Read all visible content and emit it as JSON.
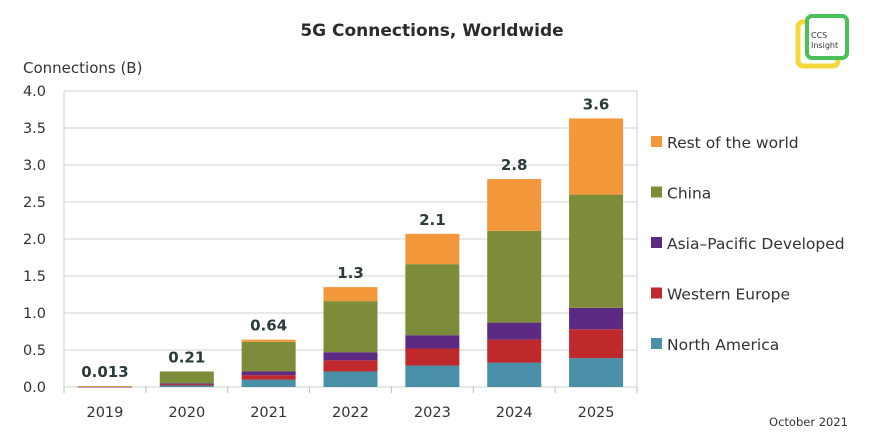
{
  "chart_data": {
    "type": "bar",
    "stacked": true,
    "title": "5G Connections, Worldwide",
    "ylabel": "Connections (B)",
    "xlabel": "",
    "ylim": [
      0,
      4.0
    ],
    "yticks": [
      "0.0",
      "0.5",
      "1.0",
      "1.5",
      "2.0",
      "2.5",
      "3.0",
      "3.5",
      "4.0"
    ],
    "ytick_values": [
      0,
      0.5,
      1.0,
      1.5,
      2.0,
      2.5,
      3.0,
      3.5,
      4.0
    ],
    "grid": true,
    "legend_position": "right",
    "categories": [
      "2019",
      "2020",
      "2021",
      "2022",
      "2023",
      "2024",
      "2025"
    ],
    "totals": [
      "0.013",
      "0.21",
      "0.64",
      "1.3",
      "2.1",
      "2.8",
      "3.6"
    ],
    "series": [
      {
        "name": "North America",
        "color": "#4a90a8",
        "values": [
          0.005,
          0.02,
          0.1,
          0.21,
          0.29,
          0.33,
          0.39
        ]
      },
      {
        "name": "Western Europe",
        "color": "#c0292b",
        "values": [
          0.001,
          0.015,
          0.06,
          0.15,
          0.23,
          0.31,
          0.39
        ]
      },
      {
        "name": "Asia–Pacific Developed",
        "color": "#5c2a82",
        "values": [
          0.001,
          0.015,
          0.05,
          0.11,
          0.18,
          0.23,
          0.29
        ]
      },
      {
        "name": "China",
        "color": "#7c8c38",
        "values": [
          0.004,
          0.16,
          0.4,
          0.69,
          0.96,
          1.24,
          1.53
        ]
      },
      {
        "name": "Rest of the world",
        "color": "#f2973a",
        "values": [
          0.002,
          0.0,
          0.03,
          0.19,
          0.41,
          0.7,
          1.03
        ]
      }
    ],
    "annotation": "October 2021"
  },
  "logo": {
    "text_line1": "CCS",
    "text_line2": "Insight"
  }
}
